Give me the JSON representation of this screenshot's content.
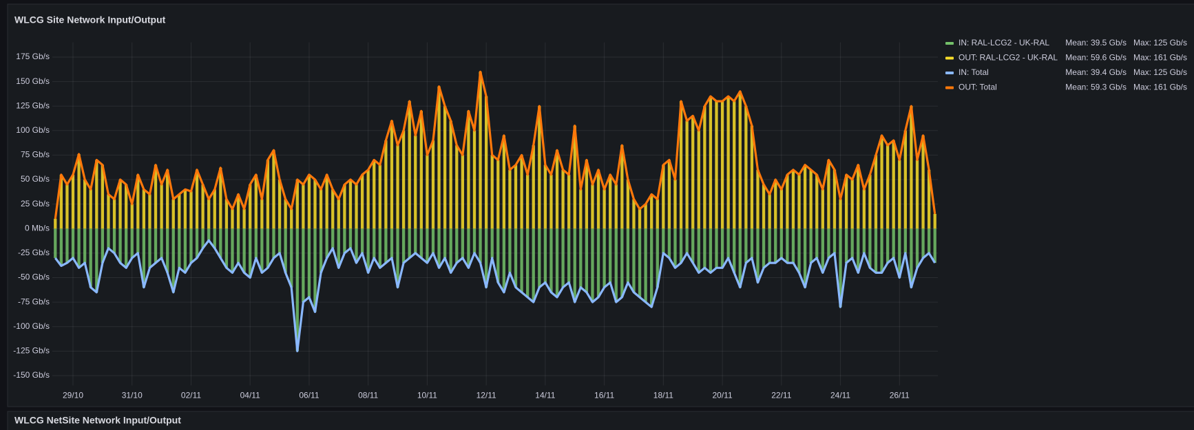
{
  "chart_data": {
    "type": "bar",
    "title": "WLCG Site Network Input/Output",
    "categories": [
      null,
      null,
      null,
      "29/10",
      null,
      null,
      null,
      null,
      null,
      null,
      null,
      null,
      null,
      "31/10",
      null,
      null,
      null,
      null,
      null,
      null,
      null,
      null,
      null,
      "02/11",
      null,
      null,
      null,
      null,
      null,
      null,
      null,
      null,
      null,
      "04/11",
      null,
      null,
      null,
      null,
      null,
      null,
      null,
      null,
      null,
      "06/11",
      null,
      null,
      null,
      null,
      null,
      null,
      null,
      null,
      null,
      "08/11",
      null,
      null,
      null,
      null,
      null,
      null,
      null,
      null,
      null,
      "10/11",
      null,
      null,
      null,
      null,
      null,
      null,
      null,
      null,
      null,
      "12/11",
      null,
      null,
      null,
      null,
      null,
      null,
      null,
      null,
      null,
      "14/11",
      null,
      null,
      null,
      null,
      null,
      null,
      null,
      null,
      null,
      "16/11",
      null,
      null,
      null,
      null,
      null,
      null,
      null,
      null,
      null,
      "18/11",
      null,
      null,
      null,
      null,
      null,
      null,
      null,
      null,
      null,
      "20/11",
      null,
      null,
      null,
      null,
      null,
      null,
      null,
      null,
      null,
      "22/11",
      null,
      null,
      null,
      null,
      null,
      null,
      null,
      null,
      null,
      "24/11",
      null,
      null,
      null,
      null,
      null,
      null,
      null,
      null,
      null,
      "26/11",
      null,
      null,
      null,
      null,
      null,
      null
    ],
    "ylim": [
      -160,
      190
    ],
    "yticks": [
      {
        "value": 175,
        "label": "175 Gb/s"
      },
      {
        "value": 150,
        "label": "150 Gb/s"
      },
      {
        "value": 125,
        "label": "125 Gb/s"
      },
      {
        "value": 100,
        "label": "100 Gb/s"
      },
      {
        "value": 75,
        "label": "75 Gb/s"
      },
      {
        "value": 50,
        "label": "50 Gb/s"
      },
      {
        "value": 25,
        "label": "25 Gb/s"
      },
      {
        "value": 0,
        "label": "0 Mb/s"
      },
      {
        "value": -25,
        "label": "-25 Gb/s"
      },
      {
        "value": -50,
        "label": "-50 Gb/s"
      },
      {
        "value": -75,
        "label": "-75 Gb/s"
      },
      {
        "value": -100,
        "label": "-100 Gb/s"
      },
      {
        "value": -125,
        "label": "-125 Gb/s"
      },
      {
        "value": -150,
        "label": "-150 Gb/s"
      }
    ],
    "grid": true,
    "legend": "right",
    "series": [
      {
        "name": "IN: RAL-LCG2 - UK-RAL",
        "type": "bar",
        "color": "#73bf69",
        "mean": "Mean: 39.5 Gb/s",
        "max": "Max: 125 Gb/s",
        "values": [
          -30,
          -38,
          -35,
          -30,
          -40,
          -35,
          -60,
          -65,
          -35,
          -20,
          -25,
          -35,
          -40,
          -30,
          -25,
          -60,
          -40,
          -35,
          -30,
          -45,
          -65,
          -40,
          -45,
          -35,
          -30,
          -20,
          -12,
          -20,
          -30,
          -40,
          -45,
          -35,
          -45,
          -50,
          -30,
          -45,
          -40,
          -30,
          -25,
          -45,
          -60,
          -125,
          -75,
          -70,
          -85,
          -45,
          -30,
          -20,
          -40,
          -25,
          -20,
          -35,
          -25,
          -45,
          -30,
          -40,
          -35,
          -30,
          -60,
          -35,
          -30,
          -25,
          -30,
          -35,
          -25,
          -40,
          -30,
          -45,
          -35,
          -30,
          -40,
          -25,
          -35,
          -60,
          -30,
          -55,
          -65,
          -45,
          -60,
          -65,
          -70,
          -75,
          -60,
          -55,
          -65,
          -70,
          -60,
          -55,
          -75,
          -60,
          -65,
          -75,
          -70,
          -60,
          -55,
          -75,
          -70,
          -55,
          -65,
          -70,
          -75,
          -80,
          -60,
          -25,
          -30,
          -40,
          -35,
          -25,
          -35,
          -45,
          -40,
          -45,
          -40,
          -40,
          -30,
          -45,
          -60,
          -35,
          -30,
          -55,
          -40,
          -35,
          -35,
          -30,
          -35,
          -35,
          -45,
          -60,
          -35,
          -30,
          -45,
          -30,
          -25,
          -80,
          -35,
          -30,
          -45,
          -25,
          -40,
          -45,
          -45,
          -35,
          -30,
          -50,
          -25,
          -60,
          -40,
          -30,
          -25,
          -35
        ]
      },
      {
        "name": "OUT: RAL-LCG2 - UK-RAL",
        "type": "bar",
        "color": "#fade2a",
        "mean": "Mean: 59.6 Gb/s",
        "max": "Max: 161 Gb/s",
        "values": [
          10,
          55,
          45,
          55,
          76,
          50,
          40,
          70,
          65,
          35,
          30,
          50,
          45,
          25,
          55,
          40,
          35,
          65,
          45,
          60,
          30,
          35,
          40,
          38,
          60,
          45,
          30,
          40,
          62,
          30,
          20,
          35,
          20,
          45,
          55,
          30,
          70,
          80,
          50,
          30,
          20,
          50,
          45,
          55,
          50,
          40,
          55,
          40,
          30,
          45,
          50,
          45,
          55,
          60,
          70,
          65,
          90,
          110,
          85,
          100,
          130,
          95,
          120,
          75,
          90,
          145,
          125,
          110,
          85,
          75,
          120,
          100,
          160,
          135,
          75,
          70,
          95,
          60,
          65,
          75,
          55,
          85,
          125,
          65,
          55,
          80,
          60,
          55,
          105,
          40,
          70,
          45,
          60,
          40,
          55,
          45,
          85,
          50,
          30,
          20,
          25,
          35,
          30,
          65,
          70,
          50,
          130,
          110,
          115,
          100,
          125,
          135,
          130,
          130,
          135,
          130,
          140,
          125,
          105,
          60,
          45,
          35,
          50,
          40,
          55,
          60,
          55,
          65,
          60,
          55,
          40,
          70,
          60,
          30,
          55,
          50,
          65,
          40,
          55,
          75,
          95,
          85,
          90,
          70,
          100,
          125,
          70,
          95,
          60,
          15
        ]
      },
      {
        "name": "IN: Total",
        "type": "line",
        "color": "#8ab8ff",
        "mean": "Mean: 39.4 Gb/s",
        "max": "Max: 125 Gb/s",
        "values": [
          -30,
          -38,
          -35,
          -30,
          -40,
          -35,
          -60,
          -65,
          -35,
          -20,
          -25,
          -35,
          -40,
          -30,
          -25,
          -60,
          -40,
          -35,
          -30,
          -45,
          -65,
          -40,
          -45,
          -35,
          -30,
          -20,
          -12,
          -20,
          -30,
          -40,
          -45,
          -35,
          -45,
          -50,
          -30,
          -45,
          -40,
          -30,
          -25,
          -45,
          -60,
          -125,
          -75,
          -70,
          -85,
          -45,
          -30,
          -20,
          -40,
          -25,
          -20,
          -35,
          -25,
          -45,
          -30,
          -40,
          -35,
          -30,
          -60,
          -35,
          -30,
          -25,
          -30,
          -35,
          -25,
          -40,
          -30,
          -45,
          -35,
          -30,
          -40,
          -25,
          -35,
          -60,
          -30,
          -55,
          -65,
          -45,
          -60,
          -65,
          -70,
          -75,
          -60,
          -55,
          -65,
          -70,
          -60,
          -55,
          -75,
          -60,
          -65,
          -75,
          -70,
          -60,
          -55,
          -75,
          -70,
          -55,
          -65,
          -70,
          -75,
          -80,
          -60,
          -25,
          -30,
          -40,
          -35,
          -25,
          -35,
          -45,
          -40,
          -45,
          -40,
          -40,
          -30,
          -45,
          -60,
          -35,
          -30,
          -55,
          -40,
          -35,
          -35,
          -30,
          -35,
          -35,
          -45,
          -60,
          -35,
          -30,
          -45,
          -30,
          -25,
          -80,
          -35,
          -30,
          -45,
          -25,
          -40,
          -45,
          -45,
          -35,
          -30,
          -50,
          -25,
          -60,
          -40,
          -30,
          -25,
          -35
        ]
      },
      {
        "name": "OUT: Total",
        "type": "line",
        "color": "#ff780a",
        "mean": "Mean: 59.3 Gb/s",
        "max": "Max: 161 Gb/s",
        "values": [
          10,
          55,
          45,
          55,
          76,
          50,
          40,
          70,
          65,
          35,
          30,
          50,
          45,
          25,
          55,
          40,
          35,
          65,
          45,
          60,
          30,
          35,
          40,
          38,
          60,
          45,
          30,
          40,
          62,
          30,
          20,
          35,
          20,
          45,
          55,
          30,
          70,
          80,
          50,
          30,
          20,
          50,
          45,
          55,
          50,
          40,
          55,
          40,
          30,
          45,
          50,
          45,
          55,
          60,
          70,
          65,
          90,
          110,
          85,
          100,
          130,
          95,
          120,
          75,
          90,
          145,
          125,
          110,
          85,
          75,
          120,
          100,
          160,
          135,
          75,
          70,
          95,
          60,
          65,
          75,
          55,
          85,
          125,
          65,
          55,
          80,
          60,
          55,
          105,
          40,
          70,
          45,
          60,
          40,
          55,
          45,
          85,
          50,
          30,
          20,
          25,
          35,
          30,
          65,
          70,
          50,
          130,
          110,
          115,
          100,
          125,
          135,
          130,
          130,
          135,
          130,
          140,
          125,
          105,
          60,
          45,
          35,
          50,
          40,
          55,
          60,
          55,
          65,
          60,
          55,
          40,
          70,
          60,
          30,
          55,
          50,
          65,
          40,
          55,
          75,
          95,
          85,
          90,
          70,
          100,
          125,
          70,
          95,
          60,
          15
        ]
      }
    ]
  },
  "next_panel_title": "WLCG NetSite Network Input/Output"
}
